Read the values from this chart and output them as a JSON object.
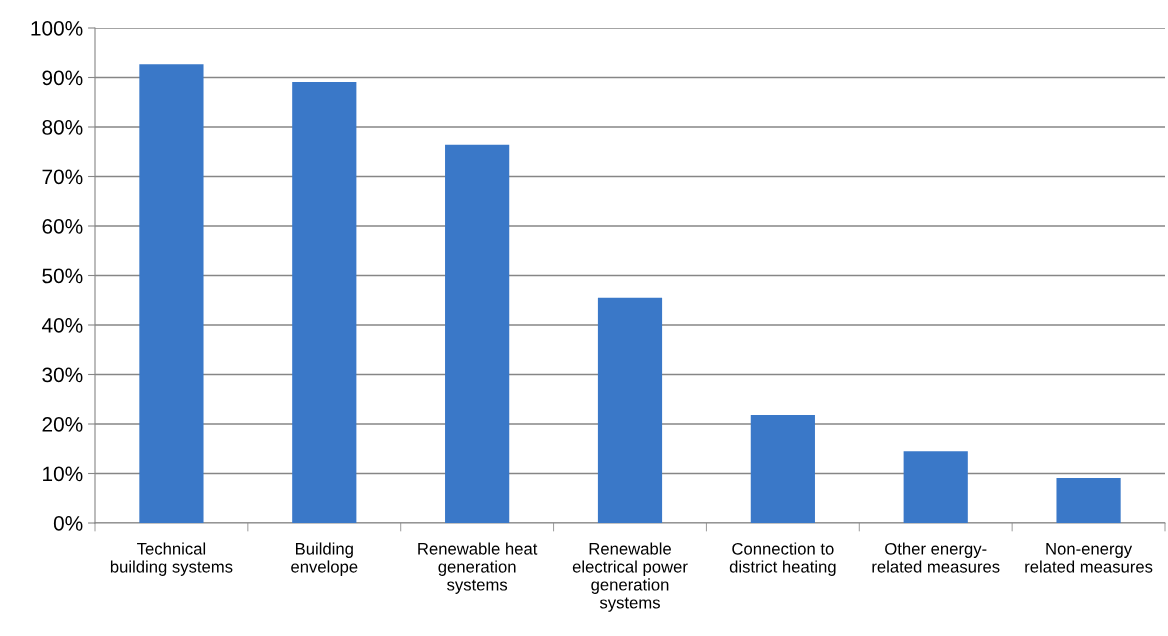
{
  "chart_data": {
    "type": "bar",
    "categories": [
      "Technical\nbuilding systems",
      "Building\nenvelope",
      "Renewable heat\ngeneration\nsystems",
      "Renewable\nelectrical power\ngeneration\nsystems",
      "Connection to\ndistrict heating",
      "Other energy-\nrelated measures",
      "Non-energy\nrelated measures"
    ],
    "values": [
      92.7,
      89.1,
      76.4,
      45.5,
      21.8,
      14.5,
      9.1
    ],
    "color": "#3a78c8",
    "ylim": [
      0,
      100
    ],
    "yticks": [
      {
        "value": 0,
        "label": "0%"
      },
      {
        "value": 10,
        "label": "10%"
      },
      {
        "value": 20,
        "label": "20%"
      },
      {
        "value": 30,
        "label": "30%"
      },
      {
        "value": 40,
        "label": "40%"
      },
      {
        "value": 50,
        "label": "50%"
      },
      {
        "value": 60,
        "label": "60%"
      },
      {
        "value": 70,
        "label": "70%"
      },
      {
        "value": 80,
        "label": "80%"
      },
      {
        "value": 90,
        "label": "90%"
      },
      {
        "value": 100,
        "label": "100%"
      }
    ],
    "grid": "y"
  }
}
